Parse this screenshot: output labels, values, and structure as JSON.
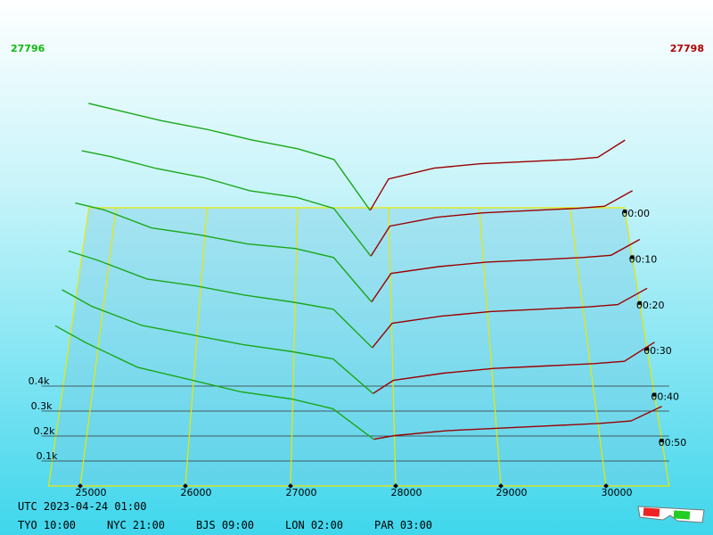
{
  "header": {
    "bid": 27796,
    "ask": 27798
  },
  "chart_data": {
    "type": "depth3d",
    "xlim": [
      24700,
      30600
    ],
    "xticks": [
      25000,
      26000,
      27000,
      28000,
      29000,
      30000
    ],
    "ylim": [
      0,
      500
    ],
    "yticks": [
      {
        "value": 100,
        "label": "0.1k"
      },
      {
        "value": 200,
        "label": "0.2k"
      },
      {
        "value": 300,
        "label": "0.3k"
      },
      {
        "value": 400,
        "label": "0.4k"
      }
    ],
    "bid_prices": [
      24700,
      25000,
      25500,
      26000,
      26500,
      27000,
      27400,
      27796
    ],
    "ask_prices": [
      27798,
      28000,
      28500,
      29000,
      29500,
      30000,
      30300,
      30600
    ],
    "bid_color": "#1aa81a",
    "ask_color": "#9a0000",
    "snapshots": [
      {
        "time": "00:00",
        "bids": [
          500,
          470,
          420,
          380,
          330,
          290,
          240,
          5
        ],
        "asks": [
          5,
          150,
          200,
          220,
          230,
          240,
          250,
          330
        ]
      },
      {
        "time": "00:10",
        "bids": [
          480,
          455,
          400,
          360,
          300,
          270,
          220,
          5
        ],
        "asks": [
          5,
          140,
          180,
          200,
          210,
          220,
          230,
          300
        ]
      },
      {
        "time": "00:20",
        "bids": [
          440,
          410,
          330,
          300,
          260,
          240,
          200,
          5
        ],
        "asks": [
          5,
          130,
          160,
          180,
          190,
          200,
          210,
          280
        ]
      },
      {
        "time": "00:30",
        "bids": [
          420,
          380,
          300,
          270,
          230,
          200,
          170,
          5
        ],
        "asks": [
          5,
          110,
          140,
          160,
          170,
          180,
          190,
          260
        ]
      },
      {
        "time": "00:40",
        "bids": [
          440,
          370,
          290,
          250,
          210,
          180,
          150,
          5
        ],
        "asks": [
          5,
          60,
          90,
          110,
          120,
          130,
          140,
          220
        ]
      },
      {
        "time": "00:50",
        "bids": [
          470,
          400,
          300,
          250,
          200,
          170,
          130,
          5
        ],
        "asks": [
          5,
          20,
          40,
          50,
          60,
          70,
          80,
          140
        ]
      }
    ]
  },
  "footer": {
    "utc": "UTC 2023-04-24 01:00",
    "cities": [
      "TYO 10:00",
      "NYC 21:00",
      "BJS 09:00",
      "LON 02:00",
      "PAR 03:00"
    ]
  }
}
